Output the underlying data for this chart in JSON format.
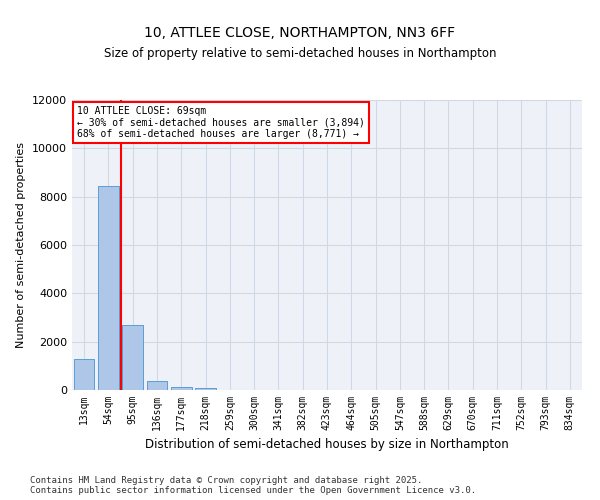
{
  "title": "10, ATTLEE CLOSE, NORTHAMPTON, NN3 6FF",
  "subtitle": "Size of property relative to semi-detached houses in Northampton",
  "xlabel": "Distribution of semi-detached houses by size in Northampton",
  "ylabel": "Number of semi-detached properties",
  "categories": [
    "13sqm",
    "54sqm",
    "95sqm",
    "136sqm",
    "177sqm",
    "218sqm",
    "259sqm",
    "300sqm",
    "341sqm",
    "382sqm",
    "423sqm",
    "464sqm",
    "505sqm",
    "547sqm",
    "588sqm",
    "629sqm",
    "670sqm",
    "711sqm",
    "752sqm",
    "793sqm",
    "834sqm"
  ],
  "values": [
    1300,
    8450,
    2700,
    380,
    140,
    90,
    0,
    0,
    0,
    0,
    0,
    0,
    0,
    0,
    0,
    0,
    0,
    0,
    0,
    0,
    0
  ],
  "bar_color": "#aec6e8",
  "bar_edge_color": "#5a9fd4",
  "property_line_x": 1.5,
  "annotation_text_line1": "10 ATTLEE CLOSE: 69sqm",
  "annotation_text_line2": "← 30% of semi-detached houses are smaller (3,894)",
  "annotation_text_line3": "68% of semi-detached houses are larger (8,771) →",
  "ylim": [
    0,
    12000
  ],
  "yticks": [
    0,
    2000,
    4000,
    6000,
    8000,
    10000,
    12000
  ],
  "grid_color": "#d0d8e8",
  "bg_color": "#eef2f8",
  "footer_line1": "Contains HM Land Registry data © Crown copyright and database right 2025.",
  "footer_line2": "Contains public sector information licensed under the Open Government Licence v3.0."
}
